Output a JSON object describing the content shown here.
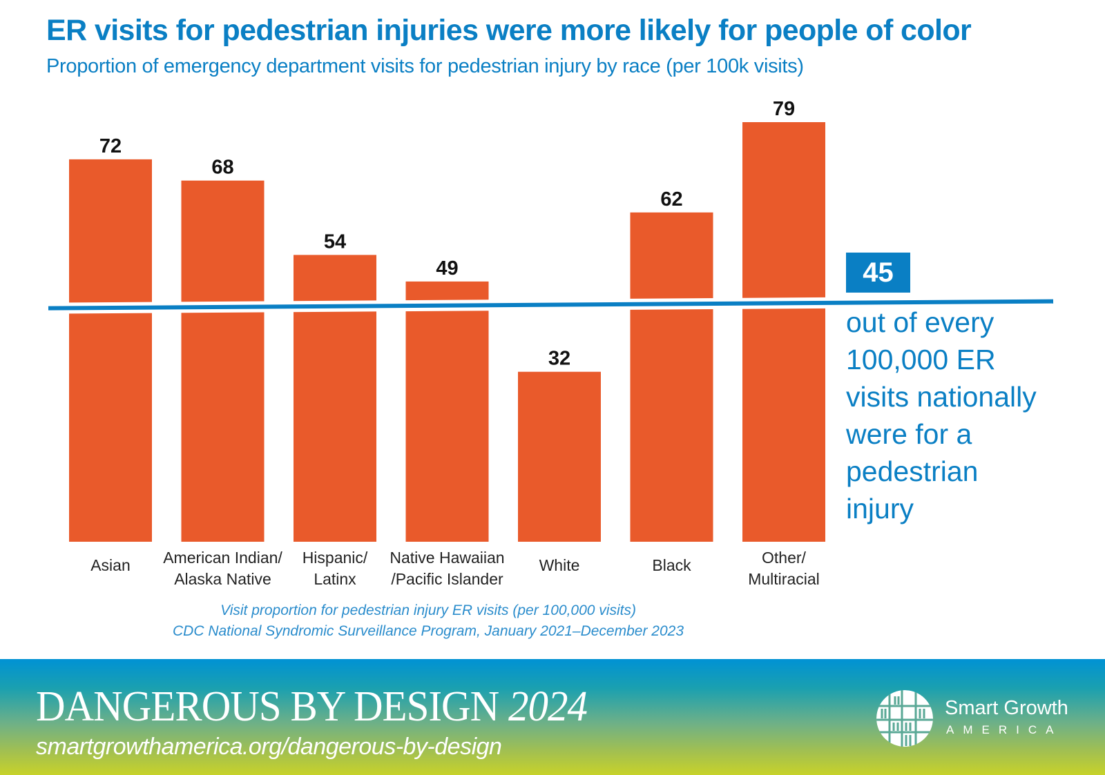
{
  "header": {
    "title": "ER visits for pedestrian injuries were more likely for people of color",
    "subtitle": "Proportion of emergency department visits for pedestrian injury by race (per 100k visits)"
  },
  "chart_data": {
    "type": "bar",
    "title": "ER visits for pedestrian injuries were more likely for people of color",
    "subtitle": "Proportion of emergency department visits for pedestrian injury by race (per 100k visits)",
    "xlabel": "",
    "ylabel": "",
    "categories": [
      [
        "Asian"
      ],
      [
        "American Indian/",
        "Alaska Native"
      ],
      [
        "Hispanic/",
        "Latinx"
      ],
      [
        "Native Hawaiian",
        "/Pacific Islander"
      ],
      [
        "White"
      ],
      [
        "Black"
      ],
      [
        "Other/",
        "Multiracial"
      ]
    ],
    "values": [
      72,
      68,
      54,
      49,
      32,
      62,
      79
    ],
    "value_labels": [
      "72",
      "68",
      "54",
      "49",
      "32",
      "62",
      "79"
    ],
    "ylim": [
      0,
      85
    ],
    "grid": false,
    "bar_color": "#e95a2b",
    "reference_line": {
      "value": 45,
      "label": "45",
      "color": "#0a7fc4",
      "annotation": [
        "out of every",
        "100,000 ER",
        "visits nationally",
        "were for a",
        "pedestrian",
        "injury"
      ]
    }
  },
  "source": {
    "line1": "Visit proportion for pedestrian injury ER visits (per 100,000 visits)",
    "line2": "CDC National Syndromic Surveillance Program, January 2021–December 2023"
  },
  "footer": {
    "title_main": "DANGEROUS BY DESIGN",
    "title_year": "2024",
    "url": "smartgrowthamerica.org/dangerous-by-design",
    "logo_name": "Smart Growth",
    "logo_sub": "AMERICA",
    "logo_icon": "smart-growth-america-logo-icon"
  },
  "colors": {
    "accent_blue": "#0a7fc4",
    "bar_orange": "#e95a2b",
    "footer_gradient_top": "#0092d4",
    "footer_gradient_bottom": "#c7d22a"
  }
}
